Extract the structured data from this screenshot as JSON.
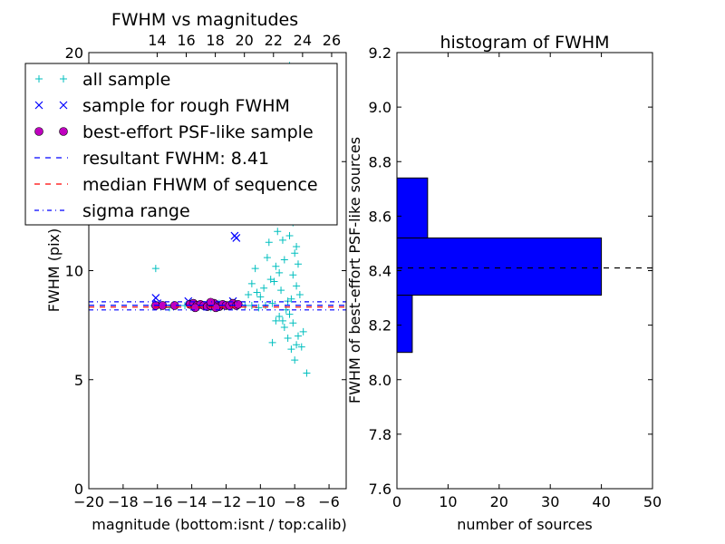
{
  "chart_data": [
    {
      "type": "scatter",
      "title": "FWHM vs magnitudes",
      "xlabel": "magnitude (bottom:isnt / top:calib)",
      "ylabel": "FWHM (pix)",
      "xlim": [
        -20,
        -5
      ],
      "ylim": [
        0,
        20
      ],
      "xticks": [
        -20,
        -18,
        -16,
        -14,
        -12,
        -10,
        -8,
        -6
      ],
      "xtick_labels": [
        "−20",
        "−18",
        "−16",
        "−14",
        "−12",
        "−10",
        "−8",
        "−6"
      ],
      "yticks": [
        0,
        5,
        10,
        15,
        20
      ],
      "ytick_labels": [
        "0",
        "5",
        "10",
        "",
        "20"
      ],
      "top_xticks": [
        14,
        16,
        18,
        20,
        22,
        24,
        26
      ],
      "top_xlim": [
        9.3,
        27.0
      ],
      "grid": false,
      "legend": {
        "placement": "upper-left",
        "entries": [
          {
            "label": "all sample",
            "marker": "plus",
            "color": "#00bfbf"
          },
          {
            "label": "sample for rough FWHM",
            "marker": "x",
            "color": "#0000ff"
          },
          {
            "label": "best-effort PSF-like sample",
            "marker": "circle",
            "color": "#bf00bf"
          },
          {
            "label": "resultant FWHM: 8.41",
            "line": "dashed",
            "color": "#0000ff"
          },
          {
            "label": "median FHWM of sequence",
            "line": "dashed",
            "color": "#ff0000"
          },
          {
            "label": "sigma range",
            "line": "dashdot",
            "color": "#0000ff"
          }
        ]
      },
      "series": [
        {
          "name": "all sample",
          "marker": "plus",
          "color": "#00bfbf",
          "points": [
            [
              -16.1,
              10.1
            ],
            [
              -16.2,
              8.4
            ],
            [
              -15.7,
              8.4
            ],
            [
              -15.3,
              8.3
            ],
            [
              -14.9,
              8.4
            ],
            [
              -14.4,
              8.4
            ],
            [
              -13.9,
              8.5
            ],
            [
              -13.4,
              8.4
            ],
            [
              -12.9,
              8.3
            ],
            [
              -12.4,
              8.5
            ],
            [
              -11.9,
              8.4
            ],
            [
              -11.4,
              8.4
            ],
            [
              -10.9,
              8.4
            ],
            [
              -10.5,
              8.4
            ],
            [
              -10.1,
              8.3
            ],
            [
              -9.7,
              8.4
            ],
            [
              -9.3,
              8.5
            ],
            [
              -10.7,
              8.9
            ],
            [
              -10.5,
              9.4
            ],
            [
              -10.3,
              10.1
            ],
            [
              -10.2,
              9.0
            ],
            [
              -10.0,
              8.8
            ],
            [
              -9.8,
              9.2
            ],
            [
              -9.6,
              10.6
            ],
            [
              -9.5,
              11.3
            ],
            [
              -9.4,
              9.6
            ],
            [
              -9.2,
              12.3
            ],
            [
              -9.1,
              10.2
            ],
            [
              -9.0,
              11.8
            ],
            [
              -8.9,
              13.1
            ],
            [
              -8.8,
              9.1
            ],
            [
              -8.7,
              14.2
            ],
            [
              -8.6,
              12.8
            ],
            [
              -8.6,
              10.5
            ],
            [
              -8.5,
              15.6
            ],
            [
              -8.4,
              17.2
            ],
            [
              -8.4,
              13.5
            ],
            [
              -8.3,
              19.4
            ],
            [
              -8.3,
              11.6
            ],
            [
              -8.2,
              16.1
            ],
            [
              -8.2,
              14.8
            ],
            [
              -8.1,
              12.2
            ],
            [
              -8.1,
              9.8
            ],
            [
              -8.0,
              15.3
            ],
            [
              -8.0,
              13.2
            ],
            [
              -7.9,
              11.1
            ],
            [
              -7.9,
              9.3
            ],
            [
              -7.8,
              14.1
            ],
            [
              -7.8,
              10.3
            ],
            [
              -7.7,
              12.6
            ],
            [
              -7.7,
              8.9
            ],
            [
              -9.0,
              14.6
            ],
            [
              -8.8,
              16.4
            ],
            [
              -8.6,
              18.2
            ],
            [
              -8.3,
              17.7
            ],
            [
              -8.1,
              17.5
            ],
            [
              -8.7,
              11.4
            ],
            [
              -8.9,
              7.9
            ],
            [
              -8.6,
              7.4
            ],
            [
              -8.4,
              6.9
            ],
            [
              -8.2,
              6.4
            ],
            [
              -8.0,
              5.9
            ],
            [
              -7.9,
              6.6
            ],
            [
              -7.6,
              6.5
            ],
            [
              -7.5,
              7.2
            ],
            [
              -7.3,
              5.3
            ],
            [
              -8.7,
              7.7
            ],
            [
              -8.5,
              8.2
            ],
            [
              -8.3,
              8.0
            ],
            [
              -9.1,
              7.7
            ],
            [
              -9.3,
              6.7
            ],
            [
              -8.1,
              7.6
            ],
            [
              -7.8,
              7.0
            ],
            [
              -8.4,
              8.6
            ],
            [
              -8.2,
              8.7
            ],
            [
              -8.0,
              10.8
            ],
            [
              -8.5,
              12.4
            ],
            [
              -8.9,
              9.9
            ],
            [
              -9.2,
              9.5
            ],
            [
              -8.1,
              14.4
            ],
            [
              -8.3,
              15.9
            ]
          ]
        },
        {
          "name": "sample for rough FWHM",
          "marker": "x",
          "color": "#0000ff",
          "points": [
            [
              -16.1,
              8.75
            ],
            [
              -16.0,
              8.5
            ],
            [
              -14.2,
              8.6
            ],
            [
              -13.5,
              8.4
            ],
            [
              -12.8,
              8.5
            ],
            [
              -12.3,
              8.45
            ],
            [
              -11.6,
              8.6
            ],
            [
              -11.4,
              11.5
            ],
            [
              -11.5,
              11.6
            ]
          ]
        },
        {
          "name": "best-effort PSF-like sample",
          "marker": "circle",
          "color": "#bf00bf",
          "points": [
            [
              -16.1,
              8.4
            ],
            [
              -15.7,
              8.4
            ],
            [
              -15.0,
              8.4
            ],
            [
              -14.1,
              8.45
            ],
            [
              -13.9,
              8.5
            ],
            [
              -13.7,
              8.4
            ],
            [
              -13.5,
              8.45
            ],
            [
              -13.3,
              8.4
            ],
            [
              -13.1,
              8.35
            ],
            [
              -12.9,
              8.4
            ],
            [
              -12.7,
              8.5
            ],
            [
              -12.5,
              8.4
            ],
            [
              -12.4,
              8.35
            ],
            [
              -12.2,
              8.45
            ],
            [
              -12.0,
              8.4
            ],
            [
              -11.8,
              8.4
            ],
            [
              -11.6,
              8.5
            ],
            [
              -11.4,
              8.4
            ],
            [
              -11.3,
              8.45
            ],
            [
              -13.8,
              8.3
            ],
            [
              -12.6,
              8.3
            ],
            [
              -12.9,
              8.55
            ]
          ]
        }
      ],
      "hlines": [
        {
          "label": "resultant FWHM: 8.41",
          "y": 8.41,
          "color": "#0000ff",
          "style": "dashed"
        },
        {
          "label": "median FHWM of sequence",
          "y": 8.33,
          "color": "#ff0000",
          "style": "dashed"
        },
        {
          "label": "sigma range",
          "y": 8.57,
          "color": "#0000ff",
          "style": "dashdot"
        },
        {
          "label": "sigma range",
          "y": 8.2,
          "color": "#0000ff",
          "style": "dashdot"
        }
      ]
    },
    {
      "type": "bar",
      "orientation": "horizontal",
      "title": "histogram of FWHM",
      "xlabel": "number of sources",
      "ylabel": "FWHM of best-effort PSF-like sources",
      "xlim": [
        0,
        50
      ],
      "ylim": [
        7.6,
        9.2
      ],
      "xticks": [
        0,
        10,
        20,
        30,
        40,
        50
      ],
      "xtick_labels": [
        "0",
        "10",
        "20",
        "30",
        "40",
        "50"
      ],
      "yticks": [
        7.6,
        7.8,
        8.0,
        8.2,
        8.4,
        8.6,
        8.8,
        9.0,
        9.2
      ],
      "ytick_labels": [
        "7.6",
        "7.8",
        "8.0",
        "8.2",
        "8.4",
        "8.6",
        "8.8",
        "9.0",
        "9.2"
      ],
      "grid": false,
      "bar_color": "#0000ff",
      "bins": [
        {
          "from": 8.1,
          "to": 8.31,
          "count": 3
        },
        {
          "from": 8.31,
          "to": 8.52,
          "count": 40
        },
        {
          "from": 8.52,
          "to": 8.74,
          "count": 6
        }
      ],
      "reference_line": {
        "y": 8.41,
        "style": "dashed",
        "color": "#000000"
      }
    }
  ]
}
